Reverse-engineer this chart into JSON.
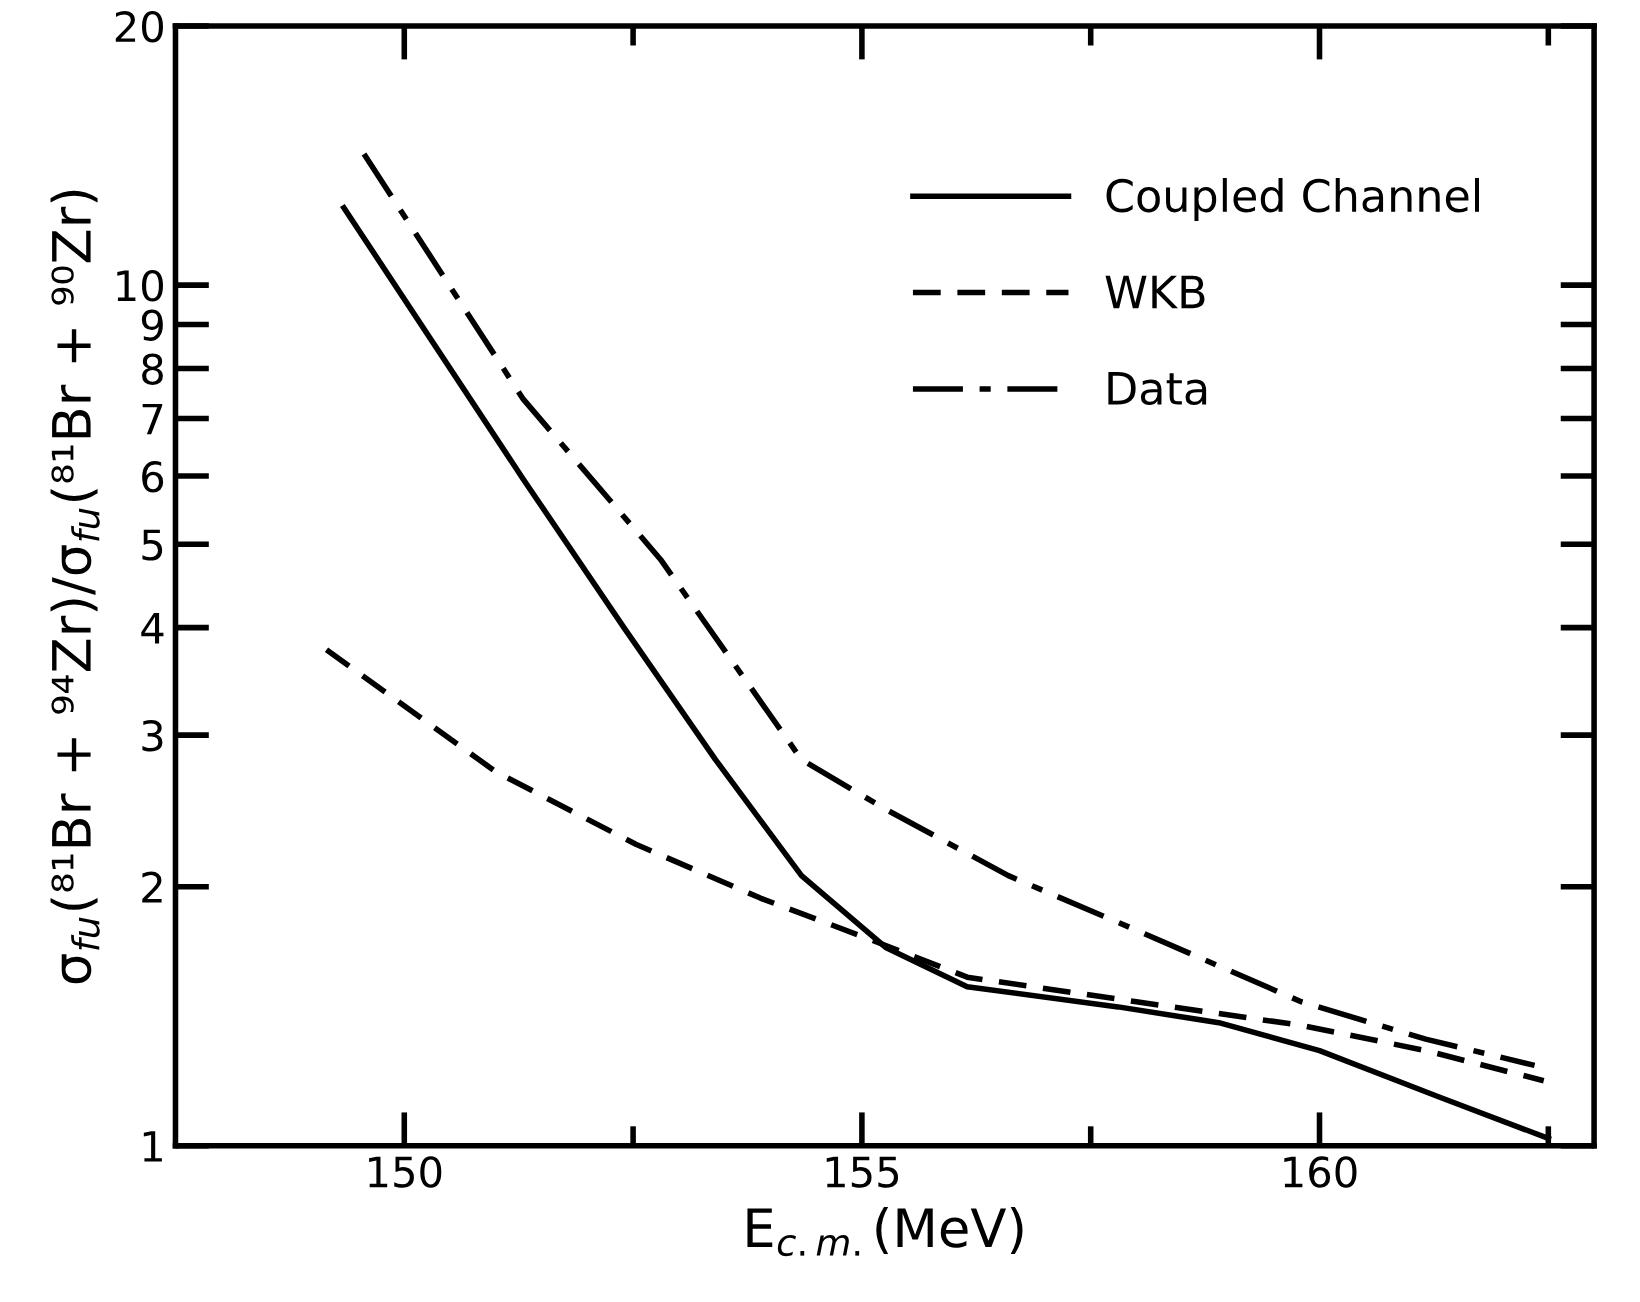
{
  "chart_data": {
    "type": "line",
    "xlabel": "E$_{c.m.}$(MeV)",
    "ylabel": "σ$_{fu}$(⁸¹Br + ⁹⁴Zr)/σ$_{fu}$(⁸¹Br + ⁹⁰Zr)",
    "log": "y",
    "xlim": [
      147.5,
      163
    ],
    "xticks": [
      150,
      {
        "value": 152.5,
        "label": null
      },
      155,
      {
        "value": 157.5,
        "label": null
      },
      160,
      {
        "value": 162.5,
        "label": null
      }
    ],
    "ylim": [
      1,
      20
    ],
    "yticks": [
      1,
      2,
      3,
      4,
      5,
      6,
      7,
      8,
      9,
      10,
      20
    ],
    "grid": false,
    "legend": "top right",
    "marker": "none",
    "series": [
      {
        "name": "Coupled Channel",
        "color": "#000000",
        "line_style": "solid",
        "x": [
          149.34,
          151.3,
          152.4,
          153.4,
          154.34,
          155.26,
          156.15,
          157.8,
          158.9,
          160.0,
          161.3,
          162.5
        ],
        "values": [
          12.3,
          5.95,
          4.0,
          2.81,
          2.06,
          1.7,
          1.53,
          1.45,
          1.39,
          1.29,
          1.14,
          1.02
        ]
      },
      {
        "name": "WKB",
        "color": "#000000",
        "line_style": "dashed",
        "x": [
          149.15,
          151.0,
          152.53,
          153.89,
          155.07,
          156.15,
          158.0,
          159.8,
          161.16,
          162.45
        ],
        "values": [
          3.77,
          2.72,
          2.24,
          1.94,
          1.74,
          1.57,
          1.47,
          1.38,
          1.29,
          1.19
        ]
      },
      {
        "name": "Data",
        "color": "#000000",
        "line_style": "dashdot",
        "x": [
          149.56,
          151.3,
          152.8,
          154.34,
          155.26,
          156.6,
          158.0,
          159.8,
          161.16,
          162.35
        ],
        "values": [
          14.2,
          7.37,
          4.8,
          2.81,
          2.46,
          2.06,
          1.78,
          1.47,
          1.33,
          1.24
        ]
      }
    ]
  }
}
